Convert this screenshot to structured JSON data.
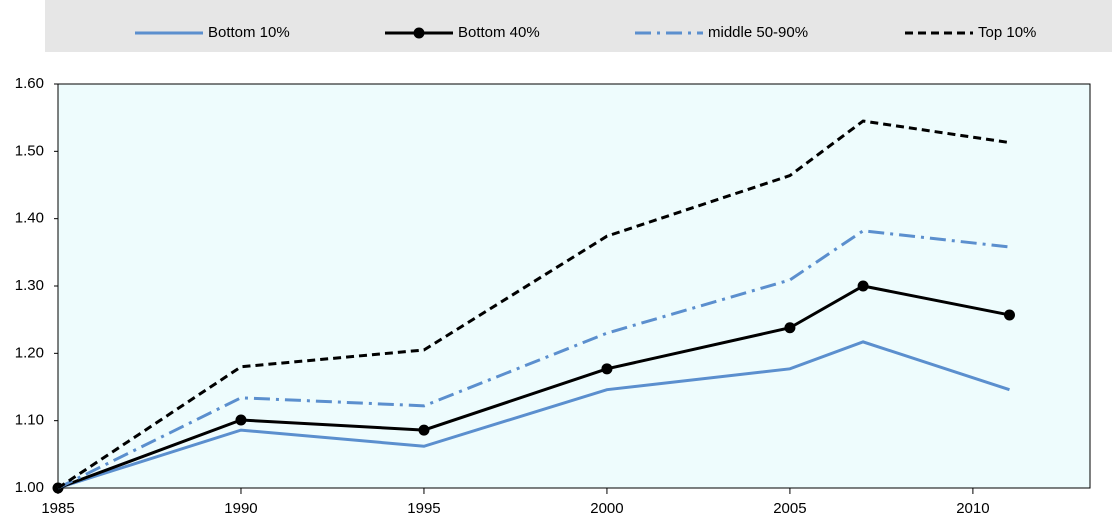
{
  "chart_data": {
    "type": "line",
    "x": [
      1985,
      1990,
      1995,
      2000,
      2005,
      2007,
      2011
    ],
    "series": [
      {
        "name": "Bottom 10%",
        "color": "#5b8fce",
        "style": "solid",
        "markers": false,
        "values": [
          1.0,
          1.086,
          1.062,
          1.146,
          1.177,
          1.217,
          1.146
        ]
      },
      {
        "name": "Bottom 40%",
        "color": "#000000",
        "style": "solid",
        "markers": true,
        "values": [
          1.0,
          1.101,
          1.086,
          1.177,
          1.238,
          1.3,
          1.257
        ]
      },
      {
        "name": "middle 50-90%",
        "color": "#5b8fce",
        "style": "dashdot",
        "markers": false,
        "values": [
          1.0,
          1.134,
          1.122,
          1.23,
          1.309,
          1.382,
          1.358
        ]
      },
      {
        "name": "Top 10%",
        "color": "#000000",
        "style": "dashed",
        "markers": false,
        "values": [
          1.0,
          1.18,
          1.205,
          1.374,
          1.464,
          1.545,
          1.513
        ]
      }
    ],
    "xlim": [
      1985,
      2013.2
    ],
    "xticks": [
      1985,
      1990,
      1995,
      2000,
      2005,
      2010
    ],
    "ylim": [
      1.0,
      1.6
    ],
    "yticks": [
      {
        "value": 1.0,
        "label": "1.00"
      },
      {
        "value": 1.1,
        "label": "1.10"
      },
      {
        "value": 1.2,
        "label": "1.20"
      },
      {
        "value": 1.3,
        "label": "1.30"
      },
      {
        "value": 1.4,
        "label": "1.40"
      },
      {
        "value": 1.5,
        "label": "1.50"
      },
      {
        "value": 1.6,
        "label": "1.60"
      }
    ],
    "legend": "top"
  }
}
